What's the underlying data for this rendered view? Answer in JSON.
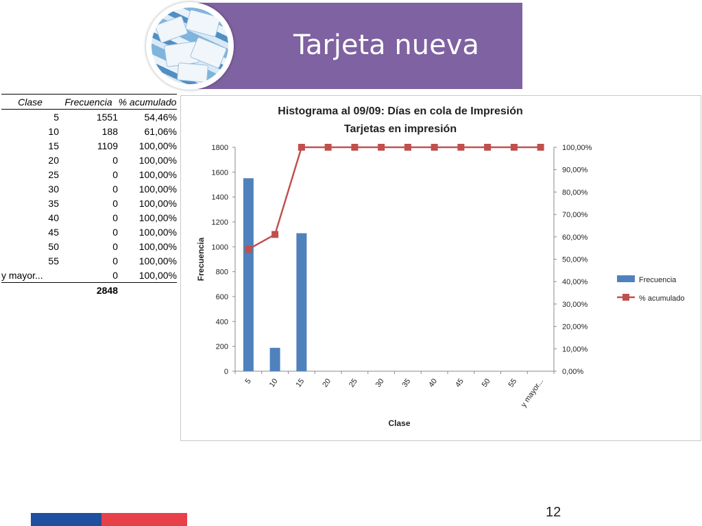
{
  "slide": {
    "title": "Tarjeta nueva",
    "page_number": "12",
    "colors": {
      "banner": "#7f62a1",
      "footer_blue": "#1f4f9f",
      "footer_red": "#e84049"
    },
    "photo_icon": "tne-cards-photo"
  },
  "table": {
    "headers": [
      "Clase",
      "Frecuencia",
      "% acumulado"
    ],
    "rows": [
      [
        "5",
        "1551",
        "54,46%"
      ],
      [
        "10",
        "188",
        "61,06%"
      ],
      [
        "15",
        "1109",
        "100,00%"
      ],
      [
        "20",
        "0",
        "100,00%"
      ],
      [
        "25",
        "0",
        "100,00%"
      ],
      [
        "30",
        "0",
        "100,00%"
      ],
      [
        "35",
        "0",
        "100,00%"
      ],
      [
        "40",
        "0",
        "100,00%"
      ],
      [
        "45",
        "0",
        "100,00%"
      ],
      [
        "50",
        "0",
        "100,00%"
      ],
      [
        "55",
        "0",
        "100,00%"
      ],
      [
        "y mayor...",
        "0",
        "100,00%"
      ]
    ],
    "total": "2848"
  },
  "chart_data": {
    "type": "bar",
    "title": "Histograma al 09/09: Días en cola de Impresión",
    "subtitle": "Tarjetas en impresión",
    "xlabel": "Clase",
    "ylabel": "Frecuencia",
    "categories": [
      "5",
      "10",
      "15",
      "20",
      "25",
      "30",
      "35",
      "40",
      "45",
      "50",
      "55",
      "y mayor..."
    ],
    "ylim": [
      0,
      1800
    ],
    "y_ticks": [
      0,
      200,
      400,
      600,
      800,
      1000,
      1200,
      1400,
      1600,
      1800
    ],
    "y2lim": [
      0,
      100
    ],
    "y2_ticks": [
      "0,00%",
      "10,00%",
      "20,00%",
      "30,00%",
      "40,00%",
      "50,00%",
      "60,00%",
      "70,00%",
      "80,00%",
      "90,00%",
      "100,00%"
    ],
    "series": [
      {
        "name": "Frecuencia",
        "type": "bar",
        "axis": "primary",
        "color": "#4f81bd",
        "values": [
          1551,
          188,
          1109,
          0,
          0,
          0,
          0,
          0,
          0,
          0,
          0,
          0
        ]
      },
      {
        "name": "% acumulado",
        "type": "line",
        "axis": "secondary",
        "color": "#c0504d",
        "values": [
          54.46,
          61.06,
          100,
          100,
          100,
          100,
          100,
          100,
          100,
          100,
          100,
          100
        ]
      }
    ],
    "legend": "right",
    "grid": false
  }
}
